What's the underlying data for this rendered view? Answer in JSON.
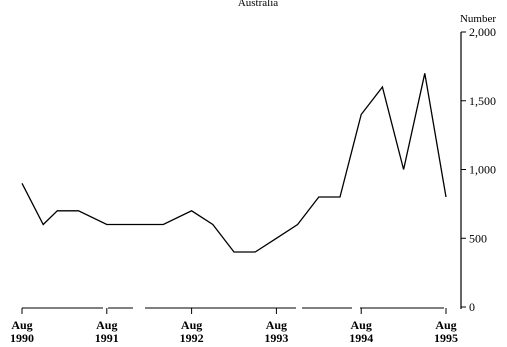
{
  "chart_data": {
    "type": "line",
    "title": "",
    "top_text_cut": "Australia",
    "xlabel": "",
    "ylabel": "Number",
    "ylim": [
      0,
      2000
    ],
    "yticks": [
      0,
      500,
      1000,
      1500,
      2000
    ],
    "ytick_labels": [
      "0",
      "500",
      "1,000",
      "1,500",
      "2,000"
    ],
    "xticks": [
      {
        "month": "Aug",
        "year": "1990",
        "pos": 0
      },
      {
        "month": "Aug",
        "year": "1991",
        "pos": 12
      },
      {
        "month": "Aug",
        "year": "1992",
        "pos": 24
      },
      {
        "month": "Aug",
        "year": "1993",
        "pos": 36
      },
      {
        "month": "Aug",
        "year": "1994",
        "pos": 48
      },
      {
        "month": "Aug",
        "year": "1995",
        "pos": 60
      }
    ],
    "grid": false,
    "legend": "none",
    "series": [
      {
        "x": [
          0,
          3,
          5,
          8,
          12,
          16,
          20,
          24,
          27,
          30,
          33,
          36,
          39,
          42,
          45,
          48,
          51,
          54,
          57,
          60
        ],
        "values": [
          900,
          600,
          700,
          700,
          600,
          600,
          600,
          700,
          600,
          400,
          400,
          500,
          600,
          800,
          800,
          1400,
          1600,
          1000,
          1700,
          800
        ]
      }
    ]
  }
}
